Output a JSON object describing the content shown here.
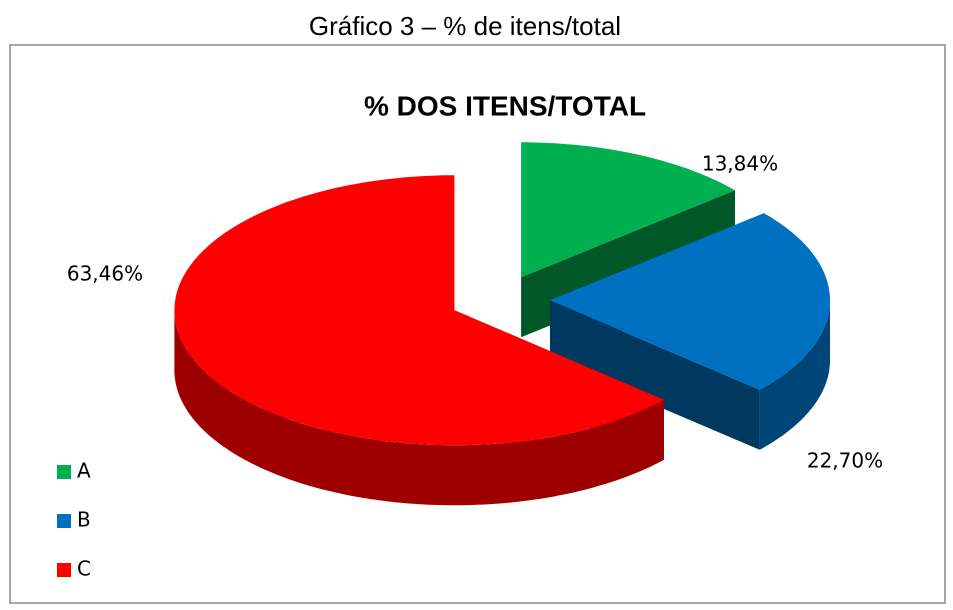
{
  "caption": "Gráfico 3 – % de itens/total",
  "chart_data": {
    "type": "pie",
    "title": "% DOS ITENS/TOTAL",
    "categories": [
      "A",
      "B",
      "C"
    ],
    "values": [
      13.84,
      22.7,
      63.46
    ],
    "value_labels": [
      "13,84%",
      "22,70%",
      "63,46%"
    ],
    "colors": [
      "#00b050",
      "#0070c0",
      "#ff0000"
    ],
    "legend": "bottom-left"
  }
}
